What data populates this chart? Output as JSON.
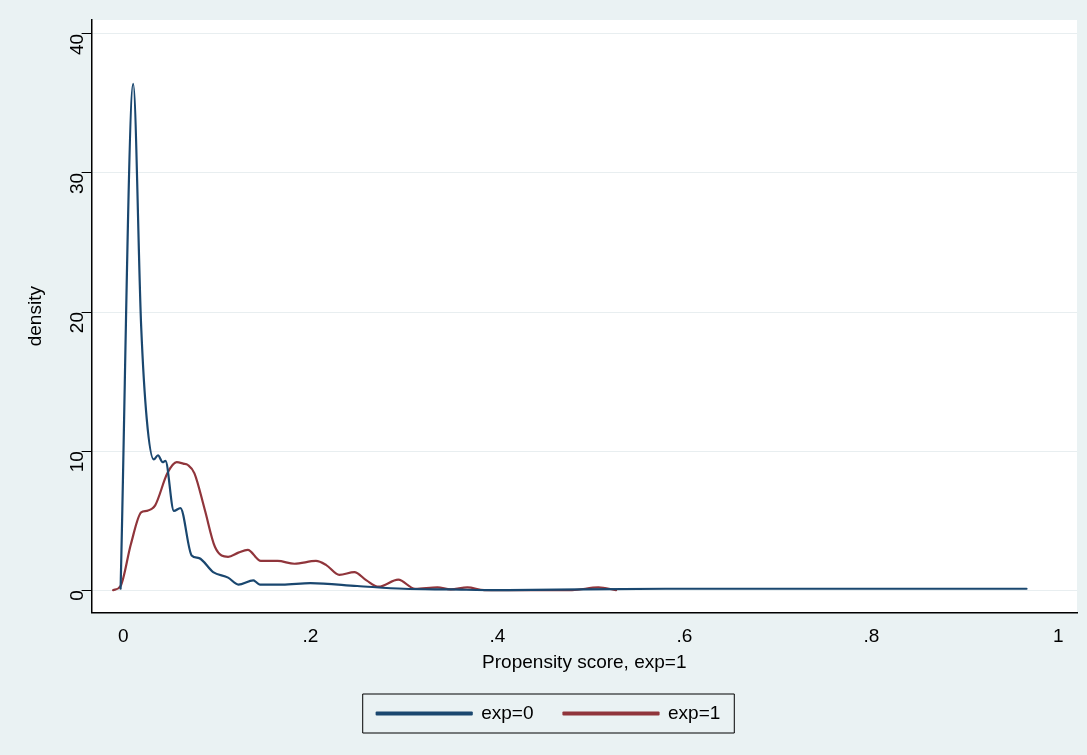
{
  "chart_data": {
    "type": "line",
    "xlabel": "Propensity score, exp=1",
    "ylabel": "density",
    "xlim": [
      -0.034,
      1.02
    ],
    "ylim": [
      -1.6,
      41
    ],
    "xticks": [
      0,
      {
        "value": 0.2,
        "label": ".2"
      },
      {
        "value": 0.4,
        "label": ".4"
      },
      {
        "value": 0.6,
        "label": ".6"
      },
      {
        "value": 0.8,
        "label": ".8"
      },
      1
    ],
    "yticks": [
      0,
      10,
      20,
      30,
      40
    ],
    "grid": "y",
    "legend": "bottom",
    "marker": "none",
    "line_style": "solid",
    "series": [
      {
        "name": "exp=0",
        "color": "#1a476f",
        "x": [
          -0.003,
          0.0105,
          0.019,
          0.025,
          0.0325,
          0.037,
          0.042,
          0.045,
          0.054,
          0.061,
          0.073,
          0.081,
          0.096,
          0.112,
          0.123,
          0.139,
          0.146,
          0.17,
          0.2,
          0.25,
          0.3,
          0.35,
          0.4,
          0.58,
          0.69,
          0.82,
          0.94,
          0.966
        ],
        "values": [
          0.1,
          36.4,
          19.0,
          12.3,
          9.4,
          9.7,
          9.2,
          9.3,
          5.7,
          5.9,
          2.5,
          2.3,
          1.3,
          0.9,
          0.4,
          0.7,
          0.4,
          0.4,
          0.5,
          0.3,
          0.1,
          0.05,
          0,
          0.1,
          0.1,
          0.1,
          0.1,
          0.1
        ]
      },
      {
        "name": "exp=1",
        "color": "#90353b",
        "x": [
          -0.011,
          -0.003,
          0.008,
          0.019,
          0.025,
          0.034,
          0.047,
          0.057,
          0.064,
          0.069,
          0.076,
          0.087,
          0.098,
          0.112,
          0.123,
          0.133,
          0.147,
          0.165,
          0.183,
          0.206,
          0.217,
          0.231,
          0.247,
          0.26,
          0.273,
          0.294,
          0.312,
          0.336,
          0.35,
          0.368,
          0.386,
          0.48,
          0.508,
          0.527
        ],
        "values": [
          0,
          0.3,
          3.3,
          5.6,
          5.7,
          6.1,
          8.4,
          9.2,
          9.1,
          9.0,
          8.4,
          5.8,
          3.1,
          2.4,
          2.7,
          2.9,
          2.1,
          2.1,
          1.9,
          2.1,
          1.8,
          1.1,
          1.3,
          0.7,
          0.25,
          0.75,
          0.1,
          0.2,
          0.05,
          0.2,
          0,
          0,
          0.2,
          0
        ]
      }
    ]
  }
}
